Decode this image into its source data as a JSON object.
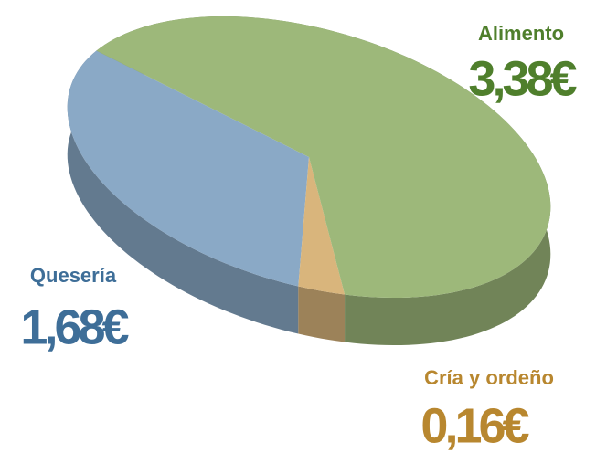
{
  "chart_data": {
    "type": "pie",
    "categories": [
      "Alimento",
      "Quesería",
      "Cría y ordeño"
    ],
    "values": [
      3.38,
      1.68,
      0.16
    ],
    "value_labels": [
      "3,38€",
      "1,68€",
      "0,16€"
    ],
    "colors": [
      "#9db87a",
      "#8aa9c6",
      "#d9b57c"
    ],
    "label_colors": [
      "#4f7f2c",
      "#3e6e98",
      "#b8872f"
    ]
  }
}
